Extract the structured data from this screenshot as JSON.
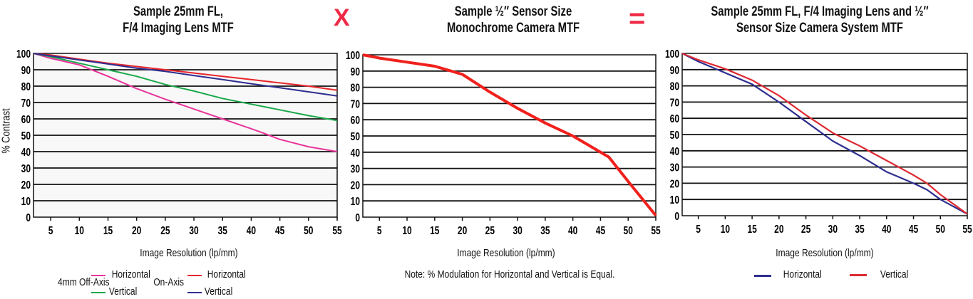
{
  "operators": {
    "times": "X",
    "equals": "="
  },
  "colors": {
    "off_axis_horizontal": "#e8359a",
    "off_axis_vertical": "#1aa84a",
    "on_axis_horizontal": "#e8262c",
    "on_axis_vertical": "#2e2e8f",
    "camera": "#f0201c",
    "system_horizontal": "#2e2e8f",
    "system_vertical": "#dd2a33",
    "operator": "#ee2b47"
  },
  "chart_data": [
    {
      "type": "line",
      "title": "Sample 25mm FL,\nF/4 Imaging Lens MTF",
      "title_lines": [
        "Sample 25mm FL,",
        "F/4 Imaging Lens MTF"
      ],
      "xlabel": "Image Resolution (lp/mm)",
      "ylabel": "% Contrast",
      "xlim": [
        2,
        55
      ],
      "ylim": [
        0,
        100
      ],
      "xticks": [
        5,
        10,
        15,
        20,
        25,
        30,
        35,
        40,
        45,
        50,
        55
      ],
      "yticks": [
        0,
        10,
        20,
        30,
        40,
        50,
        60,
        70,
        80,
        90,
        100
      ],
      "grid": true,
      "legend": {
        "placement": "bottom",
        "groups": [
          {
            "label": "4mm Off-Axis",
            "entries": [
              0,
              1
            ]
          },
          {
            "label": "On-Axis",
            "entries": [
              2,
              3
            ]
          }
        ]
      },
      "series": [
        {
          "name": "Horizontal",
          "group": "4mm Off-Axis",
          "color": "#e8359a",
          "x": [
            2,
            5,
            10,
            15,
            20,
            25,
            30,
            35,
            40,
            42,
            45,
            50,
            55
          ],
          "y": [
            100,
            97,
            93,
            86,
            78.5,
            72,
            66,
            60,
            54,
            51.5,
            47.5,
            43,
            40
          ]
        },
        {
          "name": "Vertical",
          "group": "4mm Off-Axis",
          "color": "#1aa84a",
          "x": [
            2,
            5,
            10,
            15,
            20,
            25,
            30,
            35,
            40,
            45,
            50,
            55
          ],
          "y": [
            100,
            98,
            94,
            90,
            86,
            81,
            77,
            72.5,
            69,
            65.5,
            62,
            59
          ]
        },
        {
          "name": "Horizontal",
          "group": "On-Axis",
          "color": "#e8262c",
          "x": [
            2,
            5,
            10,
            15,
            20,
            25,
            30,
            35,
            40,
            45,
            50,
            55
          ],
          "y": [
            100,
            99,
            96.5,
            94,
            92,
            90,
            88,
            86,
            84,
            82,
            80,
            77.5
          ]
        },
        {
          "name": "Vertical",
          "group": "On-Axis",
          "color": "#2e2e8f",
          "x": [
            2,
            5,
            10,
            15,
            20,
            25,
            30,
            35,
            40,
            45,
            50,
            55
          ],
          "y": [
            100,
            98.5,
            96,
            93.5,
            91,
            89,
            86.5,
            84,
            81.5,
            79,
            76.5,
            74
          ]
        }
      ]
    },
    {
      "type": "line",
      "title_lines": [
        "Sample ½″ Sensor Size",
        "Monochrome Camera MTF"
      ],
      "xlabel": "Image Resolution (lp/mm)",
      "xlim": [
        2,
        55
      ],
      "ylim": [
        0,
        100
      ],
      "xticks": [
        5,
        10,
        15,
        20,
        25,
        30,
        35,
        40,
        45,
        50,
        55
      ],
      "yticks": [
        0,
        10,
        20,
        30,
        40,
        50,
        60,
        70,
        80,
        90,
        100
      ],
      "grid": true,
      "note": "Note: % Modulation for Horizontal and Vertical is Equal.",
      "series": [
        {
          "color": "#f0201c",
          "x": [
            2,
            5,
            10,
            15,
            20,
            25,
            30,
            35,
            40,
            46.5,
            50,
            55
          ],
          "y": [
            100,
            98,
            95.5,
            93,
            88,
            77,
            67,
            58,
            50,
            37,
            22,
            1
          ]
        }
      ]
    },
    {
      "type": "line",
      "title_lines": [
        "Sample 25mm FL, F/4 Imaging Lens and ½″",
        "Sensor Size Camera System MTF"
      ],
      "xlabel": "Image Resolution (lp/mm)",
      "xlim": [
        2,
        55
      ],
      "ylim": [
        0,
        100
      ],
      "xticks": [
        5,
        10,
        15,
        20,
        25,
        30,
        35,
        40,
        45,
        50,
        55
      ],
      "yticks": [
        0,
        10,
        20,
        30,
        40,
        50,
        60,
        70,
        80,
        90,
        100
      ],
      "grid": true,
      "legend": {
        "placement": "bottom"
      },
      "series": [
        {
          "name": "Horizontal",
          "color": "#2e2e8f",
          "x": [
            2,
            5,
            10,
            15,
            20,
            25,
            30,
            35,
            40,
            45,
            47.5,
            50,
            55
          ],
          "y": [
            100,
            95,
            88,
            81,
            70,
            58,
            46,
            37,
            27,
            20,
            16,
            10,
            1
          ]
        },
        {
          "name": "Vertical",
          "color": "#dd2a33",
          "x": [
            2,
            5,
            10,
            15,
            20,
            25,
            30,
            35,
            40,
            45,
            47.5,
            50,
            55
          ],
          "y": [
            100,
            96,
            90.5,
            83.5,
            74,
            62,
            51,
            43,
            34,
            25,
            20,
            13,
            1
          ]
        }
      ]
    }
  ]
}
